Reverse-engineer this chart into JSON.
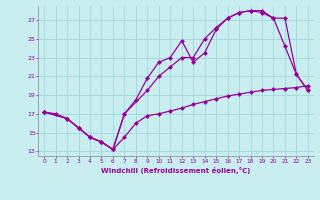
{
  "xlabel": "Windchill (Refroidissement éolien,°C)",
  "bg_color": "#c8eef0",
  "line_color": "#990099",
  "grid_color": "#a0d8e0",
  "xlim": [
    -0.5,
    23.5
  ],
  "ylim": [
    12.5,
    28.5
  ],
  "yticks": [
    13,
    15,
    17,
    19,
    21,
    23,
    25,
    27
  ],
  "xticks": [
    0,
    1,
    2,
    3,
    4,
    5,
    6,
    7,
    8,
    9,
    10,
    11,
    12,
    13,
    14,
    15,
    16,
    17,
    18,
    19,
    20,
    21,
    22,
    23
  ],
  "line1_x": [
    0,
    1,
    2,
    3,
    4,
    5,
    6,
    7,
    8,
    9,
    10,
    11,
    12,
    13,
    14,
    15,
    16,
    17,
    18,
    19,
    20,
    21,
    22,
    23
  ],
  "line1_y": [
    17.2,
    17.0,
    16.5,
    15.5,
    14.5,
    14.0,
    13.2,
    14.5,
    16.0,
    16.8,
    17.0,
    17.3,
    17.6,
    18.0,
    18.3,
    18.6,
    18.9,
    19.1,
    19.3,
    19.5,
    19.6,
    19.7,
    19.8,
    20.0
  ],
  "line2_x": [
    0,
    2,
    3,
    4,
    5,
    6,
    7,
    8,
    9,
    10,
    11,
    12,
    13,
    14,
    15,
    16,
    17,
    18,
    19,
    20,
    21,
    22,
    23
  ],
  "line2_y": [
    17.2,
    16.5,
    15.5,
    14.5,
    14.0,
    13.2,
    17.0,
    18.5,
    20.8,
    22.5,
    23.0,
    24.8,
    22.5,
    23.5,
    26.0,
    27.2,
    27.8,
    28.0,
    27.8,
    27.2,
    27.2,
    21.2,
    19.5
  ],
  "line3_x": [
    0,
    2,
    3,
    4,
    5,
    6,
    7,
    9,
    10,
    11,
    12,
    13,
    14,
    15,
    16,
    17,
    18,
    19,
    20,
    21,
    22,
    23
  ],
  "line3_y": [
    17.2,
    16.5,
    15.5,
    14.5,
    14.0,
    13.2,
    17.0,
    19.5,
    21.0,
    22.0,
    23.0,
    23.0,
    25.0,
    26.2,
    27.2,
    27.8,
    28.0,
    28.0,
    27.2,
    24.2,
    21.2,
    19.5
  ]
}
